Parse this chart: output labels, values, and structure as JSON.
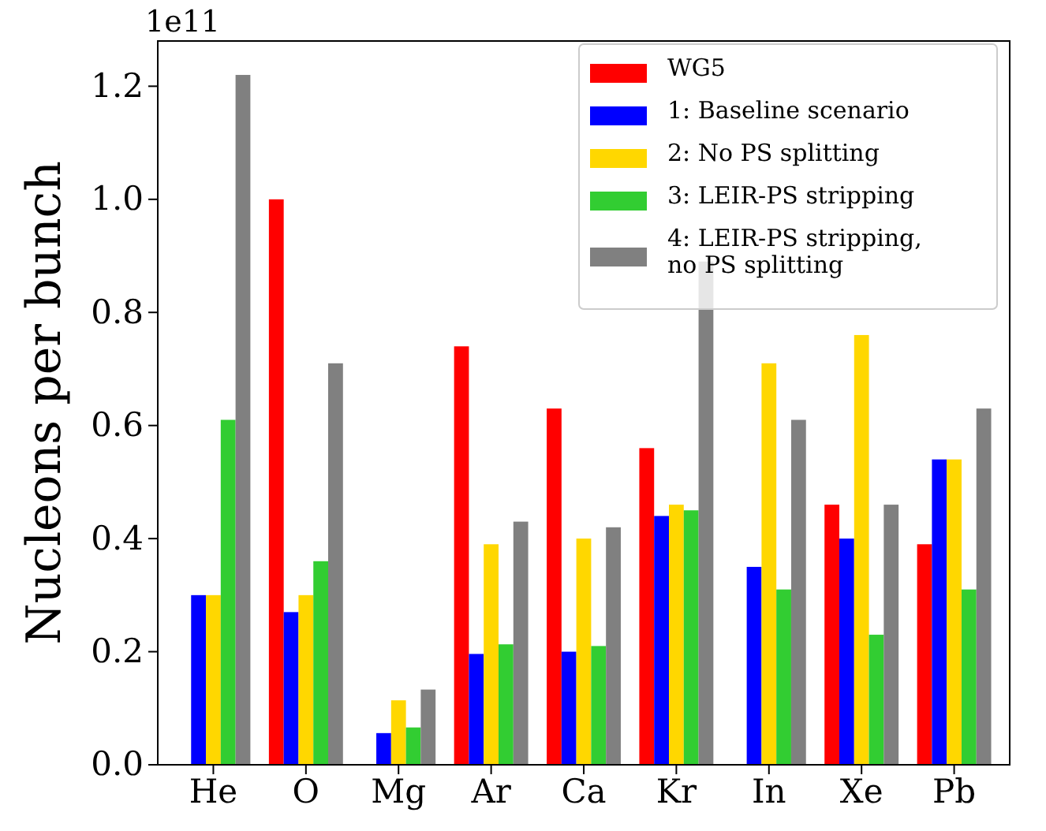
{
  "chart_data": {
    "type": "bar",
    "ylabel": "Nucleons per bunch",
    "annotations": [
      "1e11"
    ],
    "categories": [
      "He",
      "O",
      "Mg",
      "Ar",
      "Ca",
      "Kr",
      "In",
      "Xe",
      "Pb"
    ],
    "series": [
      {
        "name": "WG5",
        "color": "#ff0000",
        "values": [
          null,
          1.0,
          null,
          0.74,
          0.63,
          0.56,
          null,
          0.46,
          0.39
        ]
      },
      {
        "name": "1: Baseline scenario",
        "color": "#0000ff",
        "values": [
          0.3,
          0.27,
          0.056,
          0.196,
          0.2,
          0.44,
          0.35,
          0.4,
          0.54
        ]
      },
      {
        "name": "2: No PS splitting",
        "color": "#ffd700",
        "values": [
          0.3,
          0.3,
          0.114,
          0.39,
          0.4,
          0.46,
          0.71,
          0.76,
          0.54
        ]
      },
      {
        "name": "3: LEIR-PS stripping",
        "color": "#32cd32",
        "values": [
          0.61,
          0.36,
          0.066,
          0.213,
          0.21,
          0.45,
          0.31,
          0.23,
          0.31
        ]
      },
      {
        "name": "4: LEIR-PS stripping, no PS splitting",
        "color": "#808080",
        "values": [
          1.22,
          0.71,
          0.133,
          0.43,
          0.42,
          0.89,
          0.61,
          0.46,
          0.63
        ]
      }
    ],
    "ylim": [
      0,
      1.28
    ],
    "yticks": [
      {
        "value": 0,
        "label": "0.0"
      },
      {
        "value": 0.2,
        "label": "0.2"
      },
      {
        "value": 0.4,
        "label": "0.4"
      },
      {
        "value": 0.6,
        "label": "0.6"
      },
      {
        "value": 0.8,
        "label": "0.8"
      },
      {
        "value": 1.0,
        "label": "1.0"
      },
      {
        "value": 1.2,
        "label": "1.2"
      }
    ],
    "legend": "top right"
  }
}
